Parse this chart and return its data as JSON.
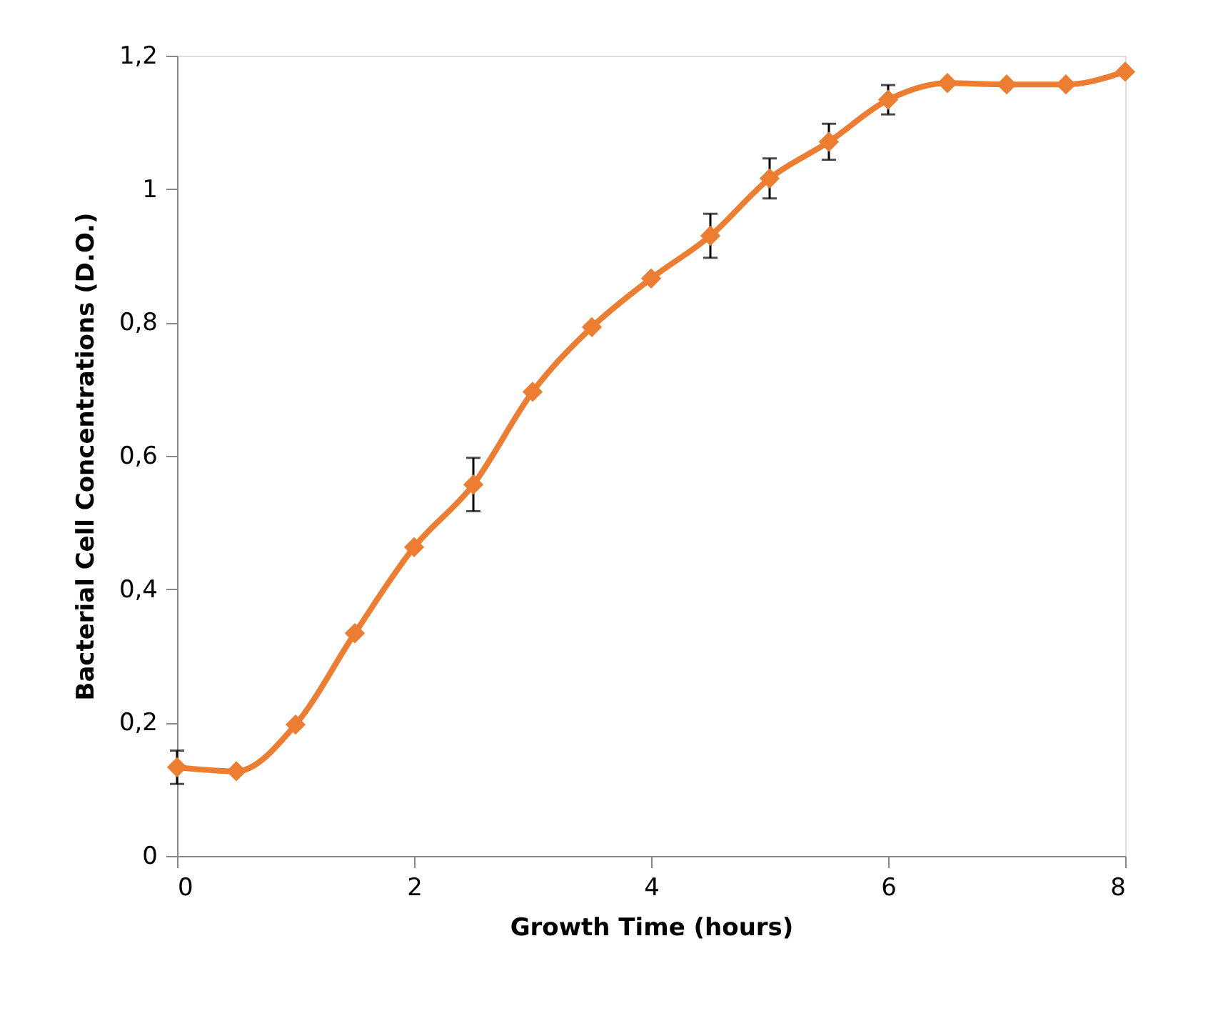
{
  "chart_data": {
    "type": "line",
    "xlabel": "Growth Time (hours)",
    "ylabel": "Bacterial Cell Concentrations (D.O.)",
    "series": [
      {
        "color": "#ed7d31",
        "x": [
          0,
          0.5,
          1,
          1.5,
          2,
          2.5,
          3,
          3.5,
          4,
          4.5,
          5,
          5.5,
          6,
          6.5,
          7,
          7.5,
          8
        ],
        "values": [
          0.133,
          0.127,
          0.197,
          0.334,
          0.463,
          0.557,
          0.696,
          0.793,
          0.866,
          0.93,
          1.016,
          1.071,
          1.134,
          1.159,
          1.157,
          1.157,
          1.176
        ],
        "errors": [
          0.025,
          null,
          null,
          null,
          null,
          0.04,
          null,
          null,
          null,
          0.033,
          0.03,
          0.027,
          0.022,
          null,
          null,
          null,
          null
        ]
      }
    ],
    "xlim": [
      0,
      8
    ],
    "xticks": [
      0,
      2,
      4,
      6,
      8
    ],
    "ylim": [
      0,
      1.2
    ],
    "yticks": [
      0,
      {
        "value": 0.2,
        "label": "0,2"
      },
      {
        "value": 0.4,
        "label": "0,4"
      },
      {
        "value": 0.6,
        "label": "0,6"
      },
      {
        "value": 0.8,
        "label": "0,8"
      },
      1,
      {
        "value": 1.2,
        "label": "1,2"
      }
    ],
    "marker": "diamond",
    "line_style": "solid",
    "grid": false
  }
}
